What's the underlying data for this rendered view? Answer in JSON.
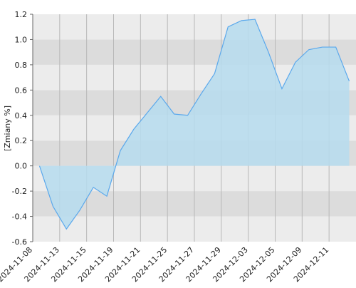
{
  "chart_data": {
    "type": "area",
    "y_label": "[Zmiany %]",
    "categories": [
      "2024-11-08",
      null,
      "2024-11-13",
      null,
      "2024-11-15",
      null,
      "2024-11-19",
      null,
      "2024-11-21",
      null,
      "2024-11-25",
      null,
      "2024-11-27",
      null,
      "2024-11-29",
      null,
      "2024-12-03",
      null,
      "2024-12-05",
      null,
      "2024-12-09",
      null,
      "2024-12-11",
      null
    ],
    "values": [
      0.0,
      -0.32,
      -0.5,
      -0.35,
      -0.17,
      -0.24,
      0.12,
      0.29,
      0.42,
      0.55,
      0.41,
      0.4,
      0.57,
      0.73,
      1.1,
      1.15,
      1.16,
      0.9,
      0.61,
      0.82,
      0.92,
      0.94,
      0.94,
      0.67
    ],
    "color": "#5aa8ec",
    "fill": "#b6dcee",
    "ylim": [
      -0.6,
      1.2
    ],
    "yticks": [
      -0.6,
      -0.4,
      -0.2,
      {
        "value": 0,
        "label": "0.0"
      },
      0.2,
      0.4,
      0.6,
      0.8,
      {
        "value": 1,
        "label": "1.0"
      },
      1.2
    ],
    "grid": true
  }
}
